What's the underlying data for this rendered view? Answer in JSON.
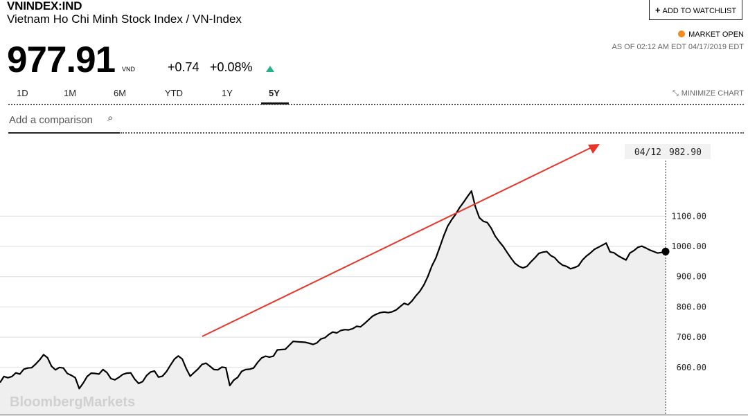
{
  "header": {
    "ticker": "VNINDEX:IND",
    "name": "Vietnam Ho Chi Minh Stock Index / VN-Index",
    "watchlist_plus": "+",
    "watchlist_label": "ADD TO WATCHLIST",
    "market_status": "MARKET OPEN",
    "market_status_color": "#f28b1e",
    "as_of": "AS OF 02:12 AM EDT 04/17/2019 EDT"
  },
  "quote": {
    "price": "977.91",
    "currency": "VND",
    "change": "+0.74",
    "change_pct": "+0.08%",
    "up_color": "#24b28c"
  },
  "tabs": [
    {
      "label": "1D"
    },
    {
      "label": "1M"
    },
    {
      "label": "6M"
    },
    {
      "label": "YTD"
    },
    {
      "label": "1Y"
    },
    {
      "label": "5Y",
      "active": true
    }
  ],
  "minimize_label": "MINIMIZE CHART",
  "comparison_placeholder": "Add a comparison",
  "watermark": "BloombergMarkets",
  "annotation_color": "#e8352a",
  "chart_data": {
    "type": "area",
    "ylim": [
      480,
      1215
    ],
    "grid": true,
    "hover_label": {
      "date": "04/12",
      "value": "982.90"
    },
    "y_ticks": [
      "1100.00",
      "1000.00",
      "900.00",
      "800.00",
      "700.00",
      "600.00"
    ],
    "values": [
      550,
      570,
      566,
      570,
      582,
      578,
      594,
      598,
      599,
      611,
      625,
      642,
      632,
      604,
      592,
      600,
      598,
      580,
      574,
      566,
      530,
      548,
      570,
      581,
      580,
      578,
      593,
      583,
      563,
      559,
      567,
      577,
      581,
      582,
      561,
      547,
      553,
      573,
      585,
      588,
      568,
      571,
      586,
      607,
      627,
      638,
      628,
      596,
      571,
      583,
      595,
      610,
      614,
      604,
      593,
      592,
      601,
      599,
      540,
      558,
      567,
      587,
      593,
      594,
      598,
      616,
      631,
      637,
      634,
      637,
      658,
      659,
      660,
      673,
      686,
      685,
      684,
      683,
      680,
      676,
      681,
      694,
      698,
      709,
      717,
      714,
      722,
      725,
      724,
      728,
      736,
      734,
      745,
      757,
      769,
      776,
      781,
      783,
      781,
      784,
      790,
      801,
      812,
      807,
      820,
      837,
      852,
      873,
      901,
      935,
      961,
      997,
      1035,
      1067,
      1088,
      1106,
      1128,
      1146,
      1165,
      1183,
      1131,
      1095,
      1083,
      1079,
      1060,
      1034,
      1016,
      1000,
      980,
      961,
      944,
      934,
      929,
      934,
      949,
      962,
      977,
      981,
      983,
      970,
      963,
      948,
      938,
      934,
      926,
      930,
      936,
      955,
      968,
      978,
      990,
      997,
      1004,
      1011,
      982,
      979,
      969,
      962,
      955,
      978,
      986,
      997,
      1001,
      995,
      988,
      983,
      978,
      980,
      983
    ]
  }
}
